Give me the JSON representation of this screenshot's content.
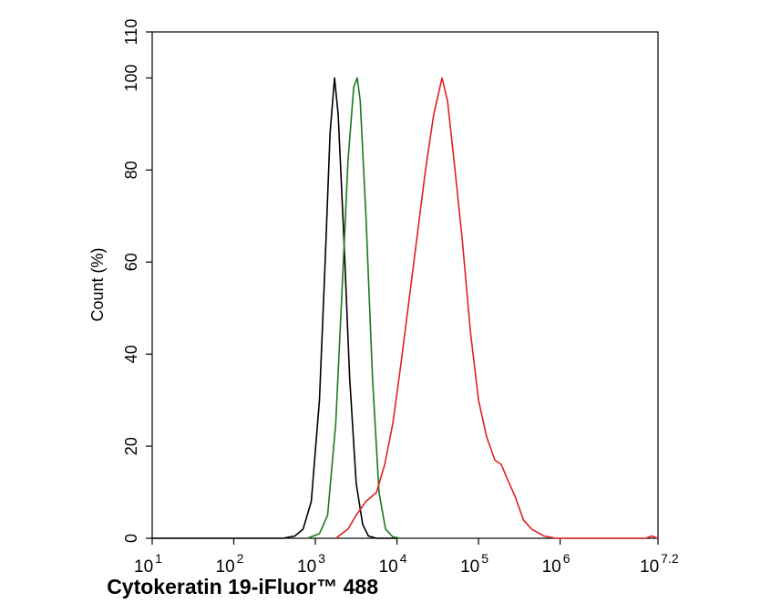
{
  "chart_data": {
    "type": "line",
    "xlabel": "Cytokeratin 19-iFluor™ 488",
    "ylabel": "Count  (%)",
    "xscale": "log",
    "xlim": [
      10,
      15848932
    ],
    "ylim": [
      0,
      110
    ],
    "xticks": [
      {
        "value": 10,
        "label": "10",
        "power": "1"
      },
      {
        "value": 100,
        "label": "10",
        "power": "2"
      },
      {
        "value": 1000,
        "label": "10",
        "power": "3"
      },
      {
        "value": 10000,
        "label": "10",
        "power": "4"
      },
      {
        "value": 100000,
        "label": "10",
        "power": "5"
      },
      {
        "value": 1000000,
        "label": "10",
        "power": "6"
      },
      {
        "value": 15848932,
        "label": "10",
        "power": "7.2"
      }
    ],
    "yticks": [
      0,
      20,
      40,
      60,
      80,
      100,
      110
    ],
    "series": [
      {
        "color": "#000000",
        "x": [
          10,
          398,
          562,
          708,
          891,
          1122,
          1318,
          1514,
          1718,
          1905,
          2239,
          2630,
          3162,
          3802,
          4467,
          5623,
          10000
        ],
        "values": [
          0,
          0,
          0.5,
          2,
          8,
          30,
          60,
          88,
          100,
          92,
          65,
          35,
          12,
          3,
          0.5,
          0,
          0
        ]
      },
      {
        "color": "#1a7a1a",
        "x": [
          794,
          1122,
          1413,
          1778,
          2138,
          2512,
          2951,
          3266,
          3548,
          4169,
          5012,
          6026,
          7244,
          8913,
          11220
        ],
        "values": [
          0,
          1,
          5,
          25,
          55,
          82,
          98,
          100,
          95,
          70,
          35,
          10,
          2,
          0.3,
          0
        ]
      },
      {
        "color": "#e02020",
        "x": [
          1778,
          2512,
          3162,
          4169,
          5623,
          7079,
          8913,
          11220,
          14125,
          17783,
          22387,
          28184,
          35727,
          41687,
          50119,
          63096,
          79433,
          100000,
          125893,
          158489,
          190546,
          223872,
          281838,
          354813,
          446684,
          630957,
          891251,
          11220185,
          13182567,
          15848932
        ],
        "values": [
          0,
          2,
          5,
          8,
          10,
          16,
          25,
          38,
          52,
          66,
          80,
          92,
          100,
          95,
          82,
          65,
          45,
          30,
          22,
          17,
          16,
          13,
          9,
          4,
          2,
          0.5,
          0,
          0,
          0.5,
          0
        ]
      }
    ]
  }
}
